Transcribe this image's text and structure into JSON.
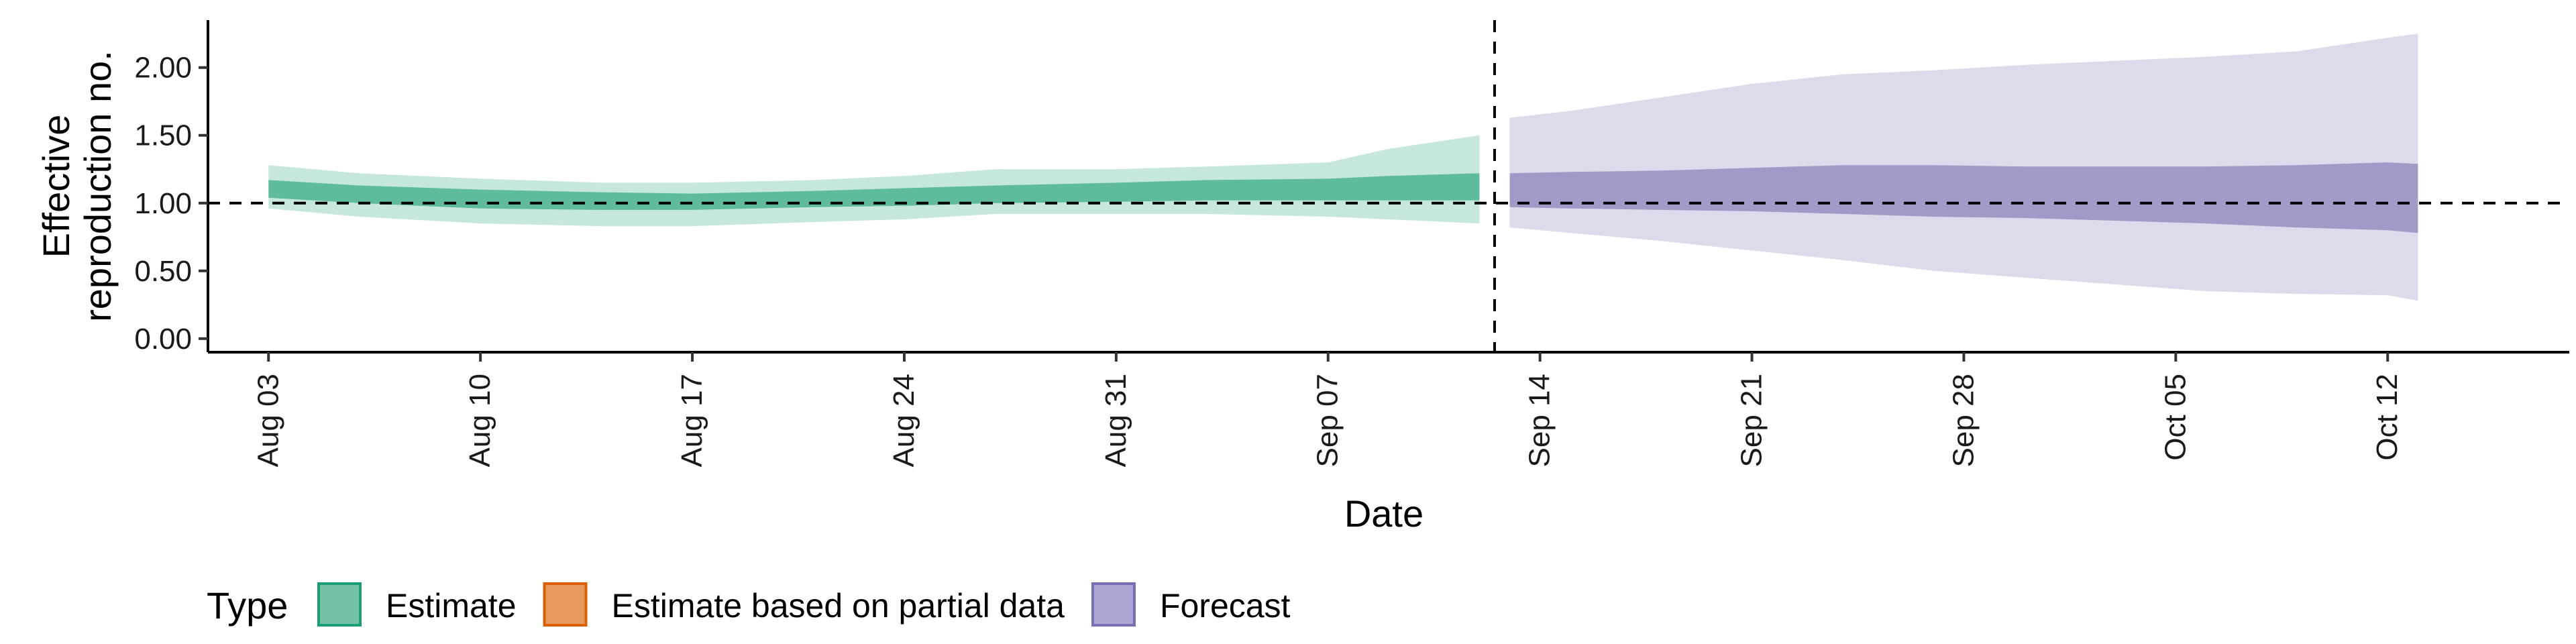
{
  "chart_data": {
    "type": "area",
    "xlabel": "Date",
    "ylabel": [
      "Effective",
      "reproduction no."
    ],
    "ylim": [
      -0.1,
      2.35
    ],
    "y_ticks": [
      0.0,
      0.5,
      1.0,
      1.5,
      2.0
    ],
    "y_tick_labels": [
      "0.00",
      "0.50",
      "1.00",
      "1.50",
      "2.00"
    ],
    "x_range": [
      "2020-08-01",
      "2020-10-18"
    ],
    "x_ticks": [
      "2020-08-03",
      "2020-08-10",
      "2020-08-17",
      "2020-08-24",
      "2020-08-31",
      "2020-09-07",
      "2020-09-14",
      "2020-09-21",
      "2020-09-28",
      "2020-10-05",
      "2020-10-12"
    ],
    "x_tick_labels": [
      "Aug 03",
      "Aug 10",
      "Aug 17",
      "Aug 24",
      "Aug 31",
      "Sep 07",
      "Sep 14",
      "Sep 21",
      "Sep 28",
      "Oct 05",
      "Oct 12"
    ],
    "reference_line_y": 1.0,
    "forecast_date": "2020-09-12",
    "series": [
      {
        "name": "Estimate",
        "color": "#1b9e77",
        "x": [
          "2020-08-03",
          "2020-08-06",
          "2020-08-10",
          "2020-08-14",
          "2020-08-17",
          "2020-08-21",
          "2020-08-24",
          "2020-08-27",
          "2020-08-31",
          "2020-09-03",
          "2020-09-07",
          "2020-09-09",
          "2020-09-12"
        ],
        "outer_lower": [
          0.96,
          0.9,
          0.85,
          0.83,
          0.83,
          0.86,
          0.88,
          0.92,
          0.92,
          0.92,
          0.9,
          0.88,
          0.85
        ],
        "outer_upper": [
          1.28,
          1.22,
          1.18,
          1.15,
          1.15,
          1.17,
          1.2,
          1.25,
          1.25,
          1.27,
          1.3,
          1.4,
          1.5
        ],
        "inner_lower": [
          1.04,
          1.0,
          0.96,
          0.95,
          0.95,
          0.97,
          0.98,
          1.0,
          1.01,
          1.02,
          1.02,
          1.02,
          1.02
        ],
        "inner_upper": [
          1.17,
          1.13,
          1.1,
          1.08,
          1.07,
          1.09,
          1.11,
          1.13,
          1.15,
          1.17,
          1.18,
          1.2,
          1.22
        ]
      },
      {
        "name": "Estimate based on partial data",
        "color": "#d95f02",
        "x": [],
        "outer_lower": [],
        "outer_upper": [],
        "inner_lower": [],
        "inner_upper": []
      },
      {
        "name": "Forecast",
        "color": "#7570b3",
        "x": [
          "2020-09-13",
          "2020-09-15",
          "2020-09-18",
          "2020-09-21",
          "2020-09-24",
          "2020-09-27",
          "2020-09-30",
          "2020-10-03",
          "2020-10-06",
          "2020-10-09",
          "2020-10-12",
          "2020-10-13"
        ],
        "outer_lower": [
          0.82,
          0.78,
          0.72,
          0.65,
          0.58,
          0.5,
          0.45,
          0.4,
          0.35,
          0.33,
          0.32,
          0.28
        ],
        "outer_upper": [
          1.63,
          1.68,
          1.78,
          1.88,
          1.95,
          1.98,
          2.02,
          2.05,
          2.08,
          2.12,
          2.22,
          2.25
        ],
        "inner_lower": [
          0.97,
          0.96,
          0.95,
          0.94,
          0.92,
          0.9,
          0.89,
          0.87,
          0.85,
          0.82,
          0.8,
          0.78
        ],
        "inner_upper": [
          1.22,
          1.23,
          1.24,
          1.26,
          1.28,
          1.28,
          1.27,
          1.27,
          1.27,
          1.28,
          1.3,
          1.29
        ]
      }
    ],
    "legend": {
      "title": "Type",
      "position": "bottom-left",
      "items": [
        {
          "label": "Estimate",
          "fill": "#75c1a6",
          "border": "#1b9e77"
        },
        {
          "label": "Estimate based on partial data",
          "fill": "#e89a5e",
          "border": "#d95f02"
        },
        {
          "label": "Forecast",
          "fill": "#aaa7d4",
          "border": "#7570b3"
        }
      ]
    },
    "grid": false
  }
}
